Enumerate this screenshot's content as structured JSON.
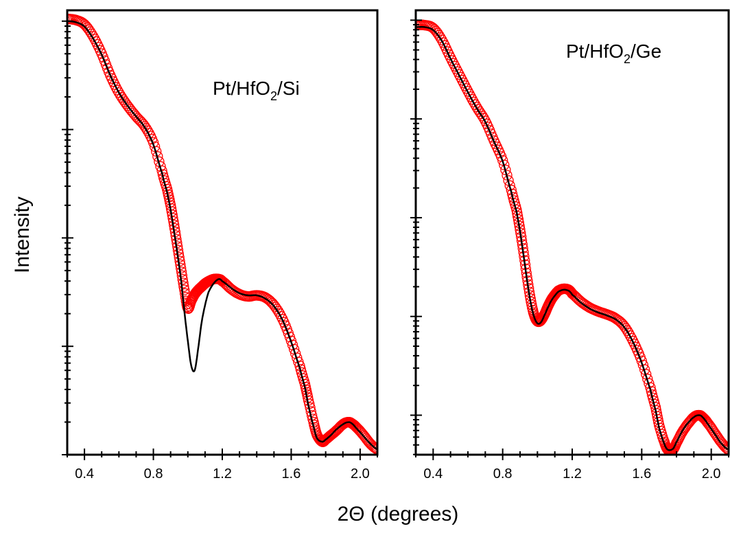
{
  "figure": {
    "ylabel": "Intensity",
    "xlabel": "2Θ (degrees)"
  },
  "chart_data": [
    {
      "type": "scatter",
      "title": "",
      "panel_label_main": "Pt/HfO",
      "panel_label_sub": "2",
      "panel_label_tail": "/Si",
      "xlim": [
        0.3,
        2.1
      ],
      "ylim_log10": [
        0.0,
        4.1
      ],
      "yscale": "log",
      "xticks": [
        0.4,
        0.8,
        1.2,
        1.6,
        2.0
      ],
      "xtick_labels": [
        "0.4",
        "0.8",
        "1.2",
        "1.6",
        "2.0"
      ],
      "yticks_log10": [
        1,
        2,
        3,
        4
      ],
      "grid": false,
      "series": [
        {
          "role": "data",
          "marker": "open-circle",
          "color": "#ff0000",
          "x": [
            0.3,
            0.35,
            0.4,
            0.45,
            0.5,
            0.55,
            0.6,
            0.65,
            0.7,
            0.75,
            0.8,
            0.85,
            0.88,
            0.9,
            0.92,
            0.94,
            0.96,
            0.98,
            1.0,
            1.02,
            1.04,
            1.06,
            1.08,
            1.1,
            1.12,
            1.15,
            1.18,
            1.2,
            1.25,
            1.3,
            1.35,
            1.4,
            1.45,
            1.5,
            1.55,
            1.6,
            1.65,
            1.68,
            1.7,
            1.73,
            1.75,
            1.78,
            1.8,
            1.83,
            1.86,
            1.9,
            1.93,
            1.95,
            1.98,
            2.02,
            2.06,
            2.1
          ],
          "y_log10": [
            4.02,
            4.01,
            3.97,
            3.86,
            3.7,
            3.5,
            3.34,
            3.22,
            3.12,
            3.03,
            2.88,
            2.62,
            2.45,
            2.3,
            2.12,
            1.92,
            1.72,
            1.52,
            1.35,
            1.42,
            1.48,
            1.52,
            1.55,
            1.58,
            1.6,
            1.62,
            1.62,
            1.6,
            1.53,
            1.48,
            1.46,
            1.47,
            1.45,
            1.38,
            1.25,
            1.05,
            0.82,
            0.65,
            0.5,
            0.3,
            0.18,
            0.12,
            0.14,
            0.18,
            0.22,
            0.28,
            0.3,
            0.29,
            0.25,
            0.18,
            0.1,
            0.05
          ]
        },
        {
          "role": "fit",
          "line": "solid",
          "color": "#000000",
          "x": [
            0.3,
            0.35,
            0.4,
            0.45,
            0.5,
            0.55,
            0.6,
            0.65,
            0.7,
            0.75,
            0.8,
            0.85,
            0.88,
            0.9,
            0.92,
            0.94,
            0.96,
            0.98,
            1.0,
            1.02,
            1.04,
            1.06,
            1.08,
            1.1,
            1.12,
            1.15,
            1.18,
            1.2,
            1.25,
            1.3,
            1.35,
            1.4,
            1.45,
            1.5,
            1.55,
            1.6,
            1.65,
            1.68,
            1.7,
            1.73,
            1.75,
            1.78,
            1.8,
            1.83,
            1.86,
            1.9,
            1.93,
            1.95,
            1.98,
            2.02,
            2.06,
            2.1
          ],
          "y_log10": [
            4.0,
            3.99,
            3.95,
            3.84,
            3.69,
            3.5,
            3.34,
            3.22,
            3.12,
            3.02,
            2.86,
            2.6,
            2.42,
            2.26,
            2.06,
            1.85,
            1.62,
            1.32,
            1.05,
            0.82,
            0.78,
            0.98,
            1.22,
            1.38,
            1.5,
            1.58,
            1.62,
            1.6,
            1.54,
            1.49,
            1.47,
            1.47,
            1.44,
            1.37,
            1.24,
            1.04,
            0.8,
            0.62,
            0.45,
            0.26,
            0.15,
            0.12,
            0.14,
            0.18,
            0.23,
            0.28,
            0.3,
            0.29,
            0.24,
            0.17,
            0.1,
            0.05
          ]
        }
      ]
    },
    {
      "type": "scatter",
      "title": "",
      "panel_label_main": "Pt/HfO",
      "panel_label_sub": "2",
      "panel_label_tail": "/Ge",
      "xlim": [
        0.3,
        2.1
      ],
      "ylim_log10": [
        0.0,
        4.5
      ],
      "yscale": "log",
      "xticks": [
        0.4,
        0.8,
        1.2,
        1.6,
        2.0
      ],
      "xtick_labels": [
        "0.4",
        "0.8",
        "1.2",
        "1.6",
        "2.0"
      ],
      "yticks_log10": [
        0.4,
        1.4,
        2.4,
        3.4,
        4.4
      ],
      "grid": false,
      "series": [
        {
          "role": "data",
          "marker": "open-circle",
          "color": "#ff0000",
          "x": [
            0.3,
            0.35,
            0.4,
            0.45,
            0.5,
            0.55,
            0.6,
            0.65,
            0.7,
            0.75,
            0.8,
            0.85,
            0.88,
            0.9,
            0.92,
            0.94,
            0.96,
            0.98,
            1.0,
            1.02,
            1.04,
            1.06,
            1.08,
            1.1,
            1.12,
            1.15,
            1.18,
            1.2,
            1.25,
            1.3,
            1.35,
            1.4,
            1.45,
            1.5,
            1.55,
            1.6,
            1.65,
            1.68,
            1.7,
            1.73,
            1.75,
            1.78,
            1.8,
            1.83,
            1.86,
            1.9,
            1.93,
            1.95,
            1.98,
            2.02,
            2.06,
            2.1
          ],
          "y_log10": [
            4.35,
            4.35,
            4.32,
            4.2,
            4.02,
            3.85,
            3.68,
            3.52,
            3.38,
            3.18,
            2.98,
            2.68,
            2.48,
            2.28,
            2.05,
            1.8,
            1.58,
            1.42,
            1.35,
            1.36,
            1.42,
            1.5,
            1.57,
            1.62,
            1.66,
            1.68,
            1.67,
            1.63,
            1.55,
            1.49,
            1.45,
            1.42,
            1.38,
            1.3,
            1.15,
            0.95,
            0.68,
            0.48,
            0.3,
            0.13,
            0.05,
            0.05,
            0.12,
            0.22,
            0.3,
            0.38,
            0.4,
            0.38,
            0.32,
            0.22,
            0.12,
            0.05
          ]
        },
        {
          "role": "fit",
          "line": "solid",
          "color": "#000000",
          "x": [
            0.3,
            0.35,
            0.4,
            0.45,
            0.5,
            0.55,
            0.6,
            0.65,
            0.7,
            0.75,
            0.8,
            0.85,
            0.88,
            0.9,
            0.92,
            0.94,
            0.96,
            0.98,
            1.0,
            1.02,
            1.04,
            1.06,
            1.08,
            1.1,
            1.12,
            1.15,
            1.18,
            1.2,
            1.25,
            1.3,
            1.35,
            1.4,
            1.45,
            1.5,
            1.55,
            1.6,
            1.65,
            1.68,
            1.7,
            1.73,
            1.75,
            1.78,
            1.8,
            1.83,
            1.86,
            1.9,
            1.93,
            1.95,
            1.98,
            2.02,
            2.06,
            2.1
          ],
          "y_log10": [
            4.33,
            4.33,
            4.3,
            4.19,
            4.01,
            3.84,
            3.67,
            3.51,
            3.37,
            3.17,
            2.97,
            2.66,
            2.46,
            2.26,
            2.02,
            1.77,
            1.55,
            1.4,
            1.33,
            1.34,
            1.41,
            1.49,
            1.56,
            1.61,
            1.65,
            1.67,
            1.66,
            1.62,
            1.54,
            1.48,
            1.44,
            1.41,
            1.37,
            1.29,
            1.14,
            0.93,
            0.66,
            0.45,
            0.27,
            0.11,
            0.05,
            0.06,
            0.13,
            0.23,
            0.31,
            0.38,
            0.4,
            0.38,
            0.31,
            0.21,
            0.11,
            0.05
          ]
        }
      ]
    }
  ]
}
